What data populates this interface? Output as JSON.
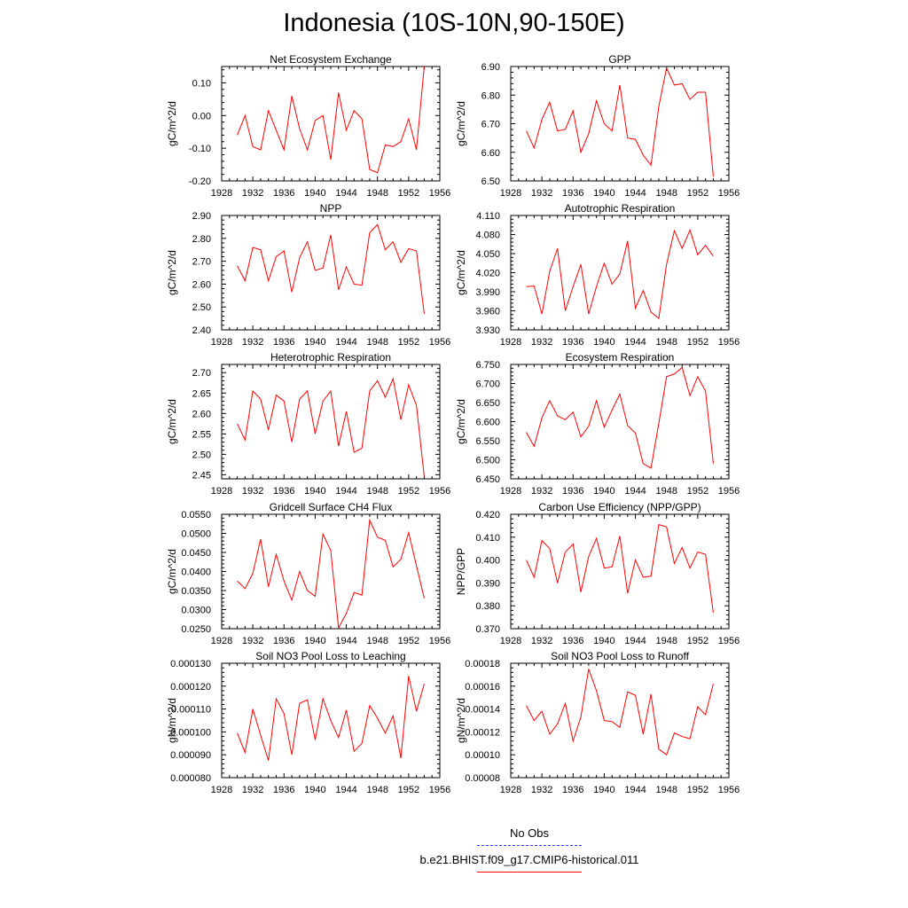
{
  "page_title": "Indonesia (10S-10N,90-150E)",
  "legend": {
    "obs_label": "No Obs",
    "obs_color": "#3030ff",
    "model_label": "b.e21.BHIST.f09_g17.CMIP6-historical.011",
    "model_color": "#ff0000"
  },
  "chart_data": [
    {
      "type": "line",
      "title": "Net Ecosystem Exchange",
      "ylabel": "gC/m^2/d",
      "xlim": [
        1928,
        1956
      ],
      "x_ticks": [
        "1928",
        "1932",
        "1936",
        "1940",
        "1944",
        "1948",
        "1952",
        "1956"
      ],
      "ylim": [
        -0.2,
        0.15
      ],
      "y_ticks": [
        "-0.20",
        "-0.10",
        "0.00",
        "0.10"
      ],
      "y_tick_values": [
        -0.2,
        -0.1,
        0.0,
        0.1
      ],
      "x": [
        1930,
        1931,
        1932,
        1933,
        1934,
        1935,
        1936,
        1937,
        1938,
        1939,
        1940,
        1941,
        1942,
        1943,
        1944,
        1945,
        1946,
        1947,
        1948,
        1949,
        1950,
        1951,
        1952,
        1953,
        1954
      ],
      "series": [
        {
          "color": "#ff0000",
          "values": [
            -0.06,
            0.0,
            -0.095,
            -0.105,
            0.015,
            -0.045,
            -0.105,
            0.06,
            -0.04,
            -0.105,
            -0.015,
            0.0,
            -0.135,
            0.07,
            -0.045,
            0.015,
            -0.01,
            -0.165,
            -0.175,
            -0.09,
            -0.095,
            -0.08,
            -0.01,
            -0.105,
            0.15
          ]
        }
      ]
    },
    {
      "type": "line",
      "title": "GPP",
      "ylabel": "gC/m^2/d",
      "xlim": [
        1928,
        1956
      ],
      "x_ticks": [
        "1928",
        "1932",
        "1936",
        "1940",
        "1944",
        "1948",
        "1952",
        "1956"
      ],
      "ylim": [
        6.5,
        6.9
      ],
      "y_ticks": [
        "6.50",
        "6.60",
        "6.70",
        "6.80",
        "6.90"
      ],
      "y_tick_values": [
        6.5,
        6.6,
        6.7,
        6.8,
        6.9
      ],
      "x": [
        1930,
        1931,
        1932,
        1933,
        1934,
        1935,
        1936,
        1937,
        1938,
        1939,
        1940,
        1941,
        1942,
        1943,
        1944,
        1945,
        1946,
        1947,
        1948,
        1949,
        1950,
        1951,
        1952,
        1953,
        1954
      ],
      "series": [
        {
          "color": "#ff0000",
          "values": [
            6.675,
            6.615,
            6.715,
            6.775,
            6.675,
            6.68,
            6.745,
            6.6,
            6.665,
            6.78,
            6.7,
            6.675,
            6.835,
            6.65,
            6.645,
            6.59,
            6.555,
            6.76,
            6.895,
            6.835,
            6.84,
            6.785,
            6.81,
            6.81,
            6.515
          ]
        }
      ]
    },
    {
      "type": "line",
      "title": "NPP",
      "ylabel": "gC/m^2/d",
      "xlim": [
        1928,
        1956
      ],
      "x_ticks": [
        "1928",
        "1932",
        "1936",
        "1940",
        "1944",
        "1948",
        "1952",
        "1956"
      ],
      "ylim": [
        2.4,
        2.9
      ],
      "y_ticks": [
        "2.40",
        "2.50",
        "2.60",
        "2.70",
        "2.80",
        "2.90"
      ],
      "y_tick_values": [
        2.4,
        2.5,
        2.6,
        2.7,
        2.8,
        2.9
      ],
      "x": [
        1930,
        1931,
        1932,
        1933,
        1934,
        1935,
        1936,
        1937,
        1938,
        1939,
        1940,
        1941,
        1942,
        1943,
        1944,
        1945,
        1946,
        1947,
        1948,
        1949,
        1950,
        1951,
        1952,
        1953,
        1954
      ],
      "series": [
        {
          "color": "#ff0000",
          "values": [
            2.68,
            2.615,
            2.76,
            2.75,
            2.615,
            2.72,
            2.745,
            2.565,
            2.715,
            2.785,
            2.66,
            2.67,
            2.815,
            2.575,
            2.675,
            2.6,
            2.595,
            2.825,
            2.86,
            2.75,
            2.785,
            2.695,
            2.755,
            2.745,
            2.47
          ]
        }
      ]
    },
    {
      "type": "line",
      "title": "Autotrophic Respiration",
      "ylabel": "gC/m^2/d",
      "xlim": [
        1928,
        1956
      ],
      "x_ticks": [
        "1928",
        "1932",
        "1936",
        "1940",
        "1944",
        "1948",
        "1952",
        "1956"
      ],
      "ylim": [
        3.93,
        4.11
      ],
      "y_ticks": [
        "3.930",
        "3.960",
        "3.990",
        "4.020",
        "4.050",
        "4.080",
        "4.110"
      ],
      "y_tick_values": [
        3.93,
        3.96,
        3.99,
        4.02,
        4.05,
        4.08,
        4.11
      ],
      "x": [
        1930,
        1931,
        1932,
        1933,
        1934,
        1935,
        1936,
        1937,
        1938,
        1939,
        1940,
        1941,
        1942,
        1943,
        1944,
        1945,
        1946,
        1947,
        1948,
        1949,
        1950,
        1951,
        1952,
        1953,
        1954
      ],
      "series": [
        {
          "color": "#ff0000",
          "values": [
            3.998,
            3.999,
            3.955,
            4.022,
            4.058,
            3.96,
            3.998,
            4.033,
            3.955,
            3.998,
            4.035,
            4.002,
            4.018,
            4.07,
            3.964,
            3.992,
            3.958,
            3.948,
            4.033,
            4.086,
            4.058,
            4.087,
            4.048,
            4.063,
            4.046
          ]
        }
      ]
    },
    {
      "type": "line",
      "title": "Heterotrophic Respiration",
      "ylabel": "gC/m^2/d",
      "xlim": [
        1928,
        1956
      ],
      "x_ticks": [
        "1928",
        "1932",
        "1936",
        "1940",
        "1944",
        "1948",
        "1952",
        "1956"
      ],
      "ylim": [
        2.44,
        2.72
      ],
      "y_ticks": [
        "2.45",
        "2.50",
        "2.55",
        "2.60",
        "2.65",
        "2.70"
      ],
      "y_tick_values": [
        2.45,
        2.5,
        2.55,
        2.6,
        2.65,
        2.7
      ],
      "x": [
        1930,
        1931,
        1932,
        1933,
        1934,
        1935,
        1936,
        1937,
        1938,
        1939,
        1940,
        1941,
        1942,
        1943,
        1944,
        1945,
        1946,
        1947,
        1948,
        1949,
        1950,
        1951,
        1952,
        1953,
        1954
      ],
      "series": [
        {
          "color": "#ff0000",
          "values": [
            2.575,
            2.535,
            2.655,
            2.635,
            2.56,
            2.645,
            2.63,
            2.53,
            2.635,
            2.655,
            2.55,
            2.63,
            2.655,
            2.52,
            2.605,
            2.505,
            2.515,
            2.655,
            2.68,
            2.64,
            2.685,
            2.585,
            2.67,
            2.62,
            2.445
          ]
        }
      ]
    },
    {
      "type": "line",
      "title": "Ecosystem Respiration",
      "ylabel": "gC/m^2/d",
      "xlim": [
        1928,
        1956
      ],
      "x_ticks": [
        "1928",
        "1932",
        "1936",
        "1940",
        "1944",
        "1948",
        "1952",
        "1956"
      ],
      "ylim": [
        6.45,
        6.75
      ],
      "y_ticks": [
        "6.450",
        "6.500",
        "6.550",
        "6.600",
        "6.650",
        "6.700",
        "6.750"
      ],
      "y_tick_values": [
        6.45,
        6.5,
        6.55,
        6.6,
        6.65,
        6.7,
        6.75
      ],
      "x": [
        1930,
        1931,
        1932,
        1933,
        1934,
        1935,
        1936,
        1937,
        1938,
        1939,
        1940,
        1941,
        1942,
        1943,
        1944,
        1945,
        1946,
        1947,
        1948,
        1949,
        1950,
        1951,
        1952,
        1953,
        1954
      ],
      "series": [
        {
          "color": "#ff0000",
          "values": [
            6.572,
            6.535,
            6.61,
            6.655,
            6.615,
            6.605,
            6.625,
            6.56,
            6.588,
            6.655,
            6.585,
            6.63,
            6.672,
            6.59,
            6.57,
            6.49,
            6.478,
            6.595,
            6.718,
            6.725,
            6.742,
            6.668,
            6.718,
            6.68,
            6.49
          ]
        }
      ]
    },
    {
      "type": "line",
      "title": "Gridcell Surface CH4 Flux",
      "ylabel": "gC/m^2/d",
      "xlim": [
        1928,
        1956
      ],
      "x_ticks": [
        "1928",
        "1932",
        "1936",
        "1940",
        "1944",
        "1948",
        "1952",
        "1956"
      ],
      "ylim": [
        0.025,
        0.055
      ],
      "y_ticks": [
        "0.0250",
        "0.0300",
        "0.0350",
        "0.0400",
        "0.0450",
        "0.0500",
        "0.0550"
      ],
      "y_tick_values": [
        0.025,
        0.03,
        0.035,
        0.04,
        0.045,
        0.05,
        0.055
      ],
      "x": [
        1930,
        1931,
        1932,
        1933,
        1934,
        1935,
        1936,
        1937,
        1938,
        1939,
        1940,
        1941,
        1942,
        1943,
        1944,
        1945,
        1946,
        1947,
        1948,
        1949,
        1950,
        1951,
        1952,
        1953,
        1954
      ],
      "series": [
        {
          "color": "#ff0000",
          "values": [
            0.0375,
            0.0355,
            0.0395,
            0.0485,
            0.036,
            0.0445,
            0.0375,
            0.0325,
            0.04,
            0.035,
            0.0335,
            0.0498,
            0.0455,
            0.0252,
            0.029,
            0.0345,
            0.0338,
            0.0535,
            0.049,
            0.0482,
            0.0412,
            0.0432,
            0.0502,
            0.0415,
            0.033
          ]
        }
      ]
    },
    {
      "type": "line",
      "title": "Carbon Use Efficiency (NPP/GPP)",
      "ylabel": "NPP/GPP",
      "xlim": [
        1928,
        1956
      ],
      "x_ticks": [
        "1928",
        "1932",
        "1936",
        "1940",
        "1944",
        "1948",
        "1952",
        "1956"
      ],
      "ylim": [
        0.37,
        0.42
      ],
      "y_ticks": [
        "0.370",
        "0.380",
        "0.390",
        "0.400",
        "0.410",
        "0.420"
      ],
      "y_tick_values": [
        0.37,
        0.38,
        0.39,
        0.4,
        0.41,
        0.42
      ],
      "x": [
        1930,
        1931,
        1932,
        1933,
        1934,
        1935,
        1936,
        1937,
        1938,
        1939,
        1940,
        1941,
        1942,
        1943,
        1944,
        1945,
        1946,
        1947,
        1948,
        1949,
        1950,
        1951,
        1952,
        1953,
        1954
      ],
      "series": [
        {
          "color": "#ff0000",
          "values": [
            0.4,
            0.3925,
            0.4085,
            0.405,
            0.39,
            0.4035,
            0.407,
            0.386,
            0.4015,
            0.4095,
            0.3965,
            0.397,
            0.4105,
            0.3855,
            0.4,
            0.3925,
            0.393,
            0.4155,
            0.4145,
            0.3985,
            0.4055,
            0.3965,
            0.4035,
            0.4025,
            0.377
          ]
        }
      ]
    },
    {
      "type": "line",
      "title": "Soil NO3 Pool Loss to Leaching",
      "ylabel": "gN/m^2/d",
      "xlim": [
        1928,
        1956
      ],
      "x_ticks": [
        "1928",
        "1932",
        "1936",
        "1940",
        "1944",
        "1948",
        "1952",
        "1956"
      ],
      "ylim": [
        8e-05,
        0.00013
      ],
      "y_ticks": [
        "0.000080",
        "0.000090",
        "0.000100",
        "0.000110",
        "0.000120",
        "0.000130"
      ],
      "y_tick_values": [
        8e-05,
        9e-05,
        0.0001,
        0.00011,
        0.00012,
        0.00013
      ],
      "x": [
        1930,
        1931,
        1932,
        1933,
        1934,
        1935,
        1936,
        1937,
        1938,
        1939,
        1940,
        1941,
        1942,
        1943,
        1944,
        1945,
        1946,
        1947,
        1948,
        1949,
        1950,
        1951,
        1952,
        1953,
        1954
      ],
      "series": [
        {
          "color": "#ff0000",
          "values": [
            9.95e-05,
            9.1e-05,
            0.00011,
            9.85e-05,
            8.75e-05,
            0.0001145,
            0.000108,
            9e-05,
            0.0001125,
            0.000114,
            9.65e-05,
            0.0001145,
            0.000105,
            9.75e-05,
            0.0001095,
            9.15e-05,
            9.5e-05,
            0.0001115,
            0.000106,
            9.95e-05,
            0.000107,
            8.85e-05,
            0.0001245,
            0.000109,
            0.000121
          ]
        }
      ]
    },
    {
      "type": "line",
      "title": "Soil NO3 Pool Loss to Runoff",
      "ylabel": "gN/m^2/d",
      "xlim": [
        1928,
        1956
      ],
      "x_ticks": [
        "1928",
        "1932",
        "1936",
        "1940",
        "1944",
        "1948",
        "1952",
        "1956"
      ],
      "ylim": [
        8e-05,
        0.00018
      ],
      "y_ticks": [
        "0.00008",
        "0.00010",
        "0.00012",
        "0.00014",
        "0.00016",
        "0.00018"
      ],
      "y_tick_values": [
        8e-05,
        0.0001,
        0.00012,
        0.00014,
        0.00016,
        0.00018
      ],
      "x": [
        1930,
        1931,
        1932,
        1933,
        1934,
        1935,
        1936,
        1937,
        1938,
        1939,
        1940,
        1941,
        1942,
        1943,
        1944,
        1945,
        1946,
        1947,
        1948,
        1949,
        1950,
        1951,
        1952,
        1953,
        1954
      ],
      "series": [
        {
          "color": "#ff0000",
          "values": [
            0.000143,
            0.00013,
            0.000138,
            0.000118,
            0.000127,
            0.000145,
            0.000112,
            0.000133,
            0.000175,
            0.000156,
            0.00013,
            0.000129,
            0.000124,
            0.000155,
            0.000152,
            0.000118,
            0.000153,
            0.000105,
            0.0001,
            0.000119,
            0.000116,
            0.000114,
            0.000142,
            0.000135,
            0.000162
          ]
        }
      ]
    }
  ]
}
